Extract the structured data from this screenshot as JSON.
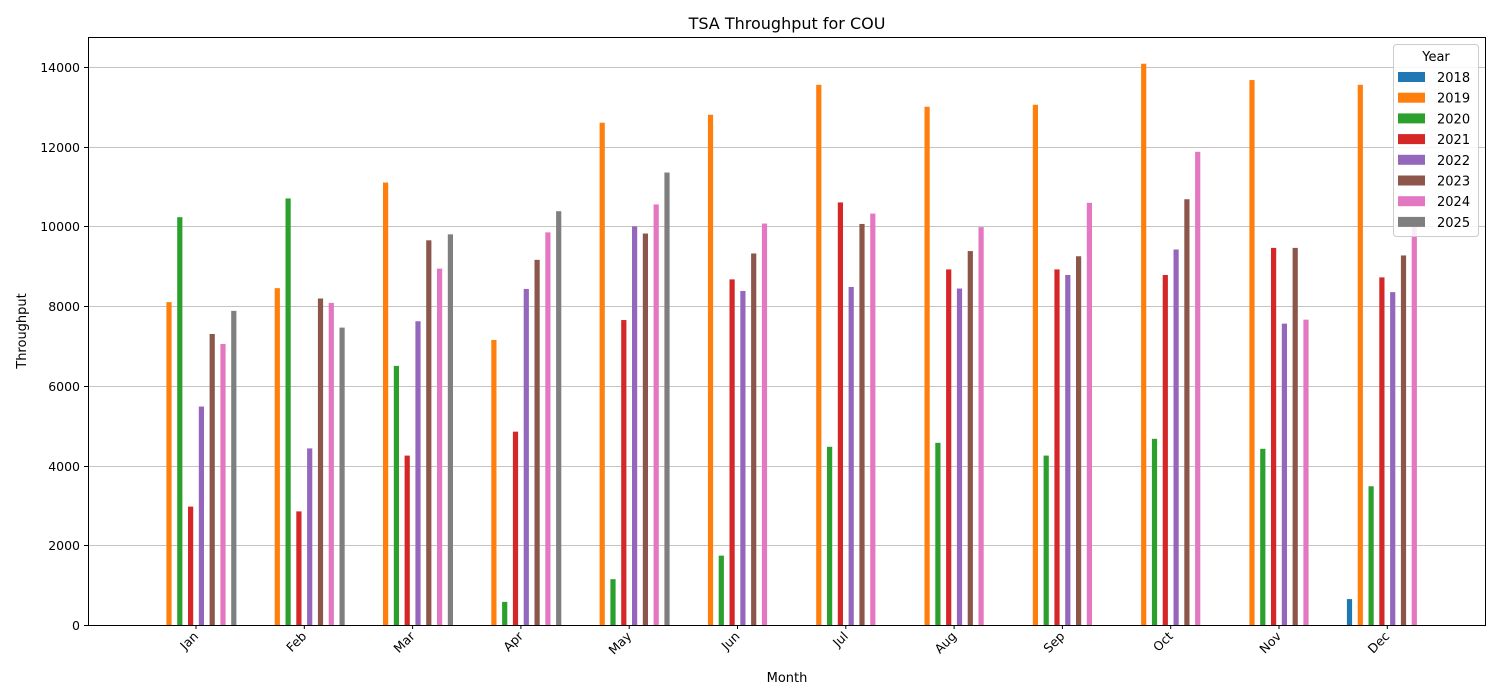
{
  "chart_data": {
    "type": "bar",
    "title": "TSA Throughput for COU",
    "xlabel": "Month",
    "ylabel": "Throughput",
    "ylim": [
      0,
      14750
    ],
    "yticks": [
      0,
      2000,
      4000,
      6000,
      8000,
      10000,
      12000,
      14000
    ],
    "grid": "horizontal",
    "legend": {
      "title": "Year",
      "placement": "top-right"
    },
    "categories": [
      "Jan",
      "Feb",
      "Mar",
      "Apr",
      "May",
      "Jun",
      "Jul",
      "Aug",
      "Sep",
      "Oct",
      "Nov",
      "Dec"
    ],
    "series": [
      {
        "name": "2018",
        "color": "#1f77b4",
        "values": [
          null,
          null,
          null,
          null,
          null,
          null,
          null,
          null,
          null,
          null,
          null,
          650
        ]
      },
      {
        "name": "2019",
        "color": "#ff7f0e",
        "values": [
          8100,
          8450,
          11100,
          7150,
          12600,
          12800,
          13550,
          13000,
          13050,
          14080,
          13670,
          13550
        ]
      },
      {
        "name": "2020",
        "color": "#2ca02c",
        "values": [
          10230,
          10700,
          6500,
          580,
          1150,
          1740,
          4470,
          4570,
          4250,
          4670,
          4420,
          3480
        ]
      },
      {
        "name": "2021",
        "color": "#d62728",
        "values": [
          2970,
          2850,
          4250,
          4850,
          7650,
          8670,
          10600,
          8920,
          8920,
          8780,
          9460,
          8720
        ]
      },
      {
        "name": "2022",
        "color": "#9467bd",
        "values": [
          5480,
          4430,
          7620,
          8430,
          10000,
          8380,
          8480,
          8440,
          8780,
          9420,
          7560,
          8350
        ]
      },
      {
        "name": "2023",
        "color": "#8c564b",
        "values": [
          7300,
          8190,
          9650,
          9160,
          9820,
          9320,
          10060,
          9380,
          9250,
          10680,
          9460,
          9270
        ]
      },
      {
        "name": "2024",
        "color": "#e377c2",
        "values": [
          7050,
          8080,
          8940,
          9850,
          10550,
          10070,
          10320,
          9980,
          10590,
          11870,
          7660,
          10000
        ]
      },
      {
        "name": "2025",
        "color": "#7f7f7f",
        "values": [
          7880,
          7460,
          9800,
          10380,
          11350,
          null,
          null,
          null,
          null,
          null,
          null,
          null
        ]
      }
    ]
  }
}
